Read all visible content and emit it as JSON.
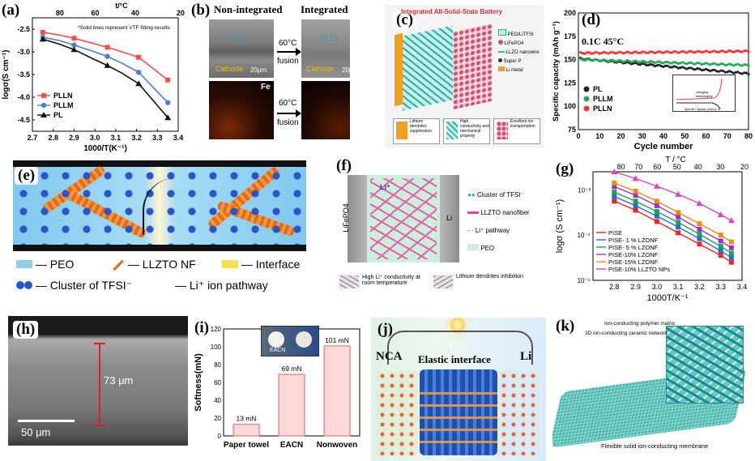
{
  "panels": {
    "a": {
      "label": "(a)",
      "note": "*Solid lines represent VTF fitting results"
    },
    "b": {
      "label": "(b)",
      "left_title": "Non-integrated",
      "right_title": "Integrated",
      "arrow_text": "60°C",
      "arrow_text2": "fusion",
      "peo_tag": "PLLN",
      "cathode_tag": "Cathode",
      "cathode_tag2": "Cathode",
      "scale": "20μm",
      "element": "Fe"
    },
    "c": {
      "label": "(c)",
      "title": "Integrated All-Solid-State Battery",
      "legend": [
        "PEO/LiTFSI",
        "LiFePO4",
        "LLZO nanowire",
        "Super P",
        "Li metal"
      ],
      "bottom": [
        "Lithium dendrites suppression",
        "High conductivity and mechanical property",
        "Excellent ion transportation"
      ]
    },
    "d": {
      "label": "(d)",
      "condition": "0.1C  45°C",
      "inset_legend": [
        "charging",
        "discharging"
      ],
      "inset_xlabel": "Specific Capacity (mAh g⁻¹)",
      "inset_ylabel": "Voltage (V)"
    },
    "e": {
      "label": "(e)",
      "legend": [
        "— PEO",
        "— LLZTO NF",
        "— Interface",
        "— Cluster of TFSI⁻",
        "— Li⁺ ion pathway"
      ]
    },
    "f": {
      "label": "(f)",
      "cathode": "LiFePO4",
      "anode": "Li",
      "legend": [
        "Cluster of TFSI⁻",
        "LLZTO nanofiber",
        "Li⁺ pathway",
        "PEO"
      ],
      "ion": "Li⁺",
      "bottom_left": "High Li⁺ conductivity at room temperature",
      "bottom_right": "Lithium dendrites inhibition"
    },
    "g": {
      "label": "(g)"
    },
    "h": {
      "label": "(h)",
      "thickness": "73 μm",
      "scale": "50 μm"
    },
    "i": {
      "label": "(i)",
      "photo_label": "EACN"
    },
    "j": {
      "label": "(j)",
      "left": "NCA",
      "right": "Li",
      "center": "Elastic interface"
    },
    "k": {
      "label": "(k)",
      "callout1": "Ion-conducting polymer matrix",
      "callout2": "3D ion-conducting ceramic network",
      "caption": "Flexible solid ion-conducting membrane"
    }
  },
  "chart_data": [
    {
      "id": "a",
      "type": "line",
      "xlabel": "1000/T(K⁻¹)",
      "ylabel": "logσ(S cm⁻¹)",
      "top_label": "t/°C",
      "xlim": [
        2.7,
        3.4
      ],
      "ylim": [
        -4.75,
        -2.25
      ],
      "xticks": [
        2.7,
        2.8,
        2.9,
        3.0,
        3.1,
        3.2,
        3.3,
        3.4
      ],
      "yticks": [
        -2.5,
        -3.0,
        -3.5,
        -4.0,
        -4.5
      ],
      "top_ticks": [
        80,
        60,
        40,
        20
      ],
      "legend_position": "bottom-left",
      "series": [
        {
          "name": "PLLN",
          "color": "#ff4b4b",
          "marker": "square",
          "x": [
            2.75,
            2.83,
            2.9,
            2.98,
            3.06,
            3.13,
            3.21,
            3.35
          ],
          "y": [
            -2.57,
            -2.63,
            -2.7,
            -2.8,
            -2.9,
            -3.0,
            -3.12,
            -3.62
          ]
        },
        {
          "name": "PLLM",
          "color": "#4a7fd8",
          "marker": "circle",
          "x": [
            2.75,
            2.83,
            2.9,
            2.98,
            3.06,
            3.13,
            3.21,
            3.35
          ],
          "y": [
            -2.68,
            -2.75,
            -2.85,
            -2.97,
            -3.1,
            -3.25,
            -3.45,
            -4.12
          ]
        },
        {
          "name": "PL",
          "color": "#111111",
          "marker": "triangle",
          "x": [
            2.75,
            2.83,
            2.9,
            2.98,
            3.06,
            3.13,
            3.21,
            3.35
          ],
          "y": [
            -2.72,
            -2.83,
            -2.95,
            -3.13,
            -3.3,
            -3.47,
            -3.7,
            -4.45
          ]
        }
      ]
    },
    {
      "id": "d",
      "type": "scatter",
      "xlabel": "Cycle number",
      "ylabel": "Specific capacity (mAh g⁻¹)",
      "xlim": [
        0,
        80
      ],
      "ylim": [
        75,
        200
      ],
      "xticks": [
        0,
        10,
        20,
        30,
        40,
        50,
        60,
        70,
        80
      ],
      "yticks": [
        75,
        100,
        125,
        150,
        175,
        200
      ],
      "legend_position": "bottom-left",
      "series": [
        {
          "name": "PL",
          "color": "#222222",
          "start": 151,
          "end": 135
        },
        {
          "name": "PLLM",
          "color": "#22a85a",
          "start": 150,
          "end": 144
        },
        {
          "name": "PLLN",
          "color": "#ff3030",
          "start": 157,
          "end": 159
        }
      ]
    },
    {
      "id": "g",
      "type": "line",
      "xlabel": "1000T/K⁻¹",
      "ylabel": "logσ (S cm⁻¹)",
      "top_label": "T / °C",
      "xlim": [
        2.7,
        3.4
      ],
      "ylim_log": [
        -5,
        -2.6
      ],
      "xticks": [
        2.8,
        2.9,
        3.0,
        3.1,
        3.2,
        3.3,
        3.4
      ],
      "yticks_labels": [
        "10⁻³",
        "10⁻⁴",
        "10⁻⁵"
      ],
      "top_ticks": [
        80,
        70,
        60,
        50,
        40,
        30,
        20
      ],
      "legend_position": "bottom-left",
      "x": [
        2.8,
        2.9,
        3.0,
        3.1,
        3.2,
        3.3,
        3.35
      ],
      "series": [
        {
          "name": "PISE",
          "color": "#ff2020",
          "y": [
            -3.25,
            -3.45,
            -3.7,
            -3.95,
            -4.2,
            -4.45,
            -4.6
          ]
        },
        {
          "name": "PISE- 1 % LZONF",
          "color": "#1e6fd8",
          "y": [
            -3.15,
            -3.35,
            -3.58,
            -3.82,
            -4.08,
            -4.35,
            -4.5
          ]
        },
        {
          "name": "PISE- 5 % LZONF",
          "color": "#22a050",
          "y": [
            -3.05,
            -3.25,
            -3.48,
            -3.72,
            -3.98,
            -4.25,
            -4.4
          ]
        },
        {
          "name": "PISE-10% LZONF",
          "color": "#9b30d0",
          "y": [
            -2.93,
            -3.12,
            -3.35,
            -3.6,
            -3.87,
            -4.13,
            -4.28
          ]
        },
        {
          "name": "PISE-15% LZONF",
          "color": "#f08a10",
          "y": [
            -2.85,
            -3.03,
            -3.25,
            -3.5,
            -3.75,
            -4.0,
            -4.15
          ]
        },
        {
          "name": "PISE-10% LLZTO NPs",
          "color": "#e040c0",
          "y": [
            -2.6,
            -2.75,
            -2.92,
            -3.1,
            -3.3,
            -3.55,
            -3.68
          ]
        }
      ]
    },
    {
      "id": "i",
      "type": "bar",
      "ylabel": "Softness(mN)",
      "ylim": [
        0,
        120
      ],
      "yticks": [
        0,
        20,
        40,
        60,
        80,
        100,
        120
      ],
      "categories": [
        "Paper towel",
        "EACN",
        "Nonwoven"
      ],
      "values": [
        13,
        69,
        101
      ],
      "data_labels": [
        "13 mN",
        "69 mN",
        "101 mN"
      ]
    }
  ]
}
